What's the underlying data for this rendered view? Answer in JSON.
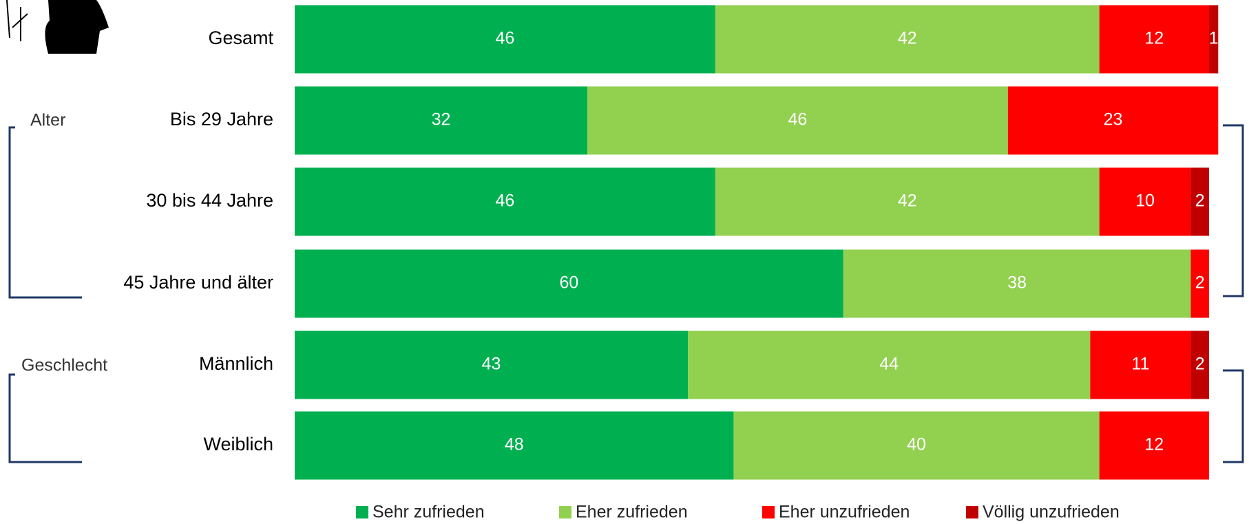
{
  "chart_data": {
    "type": "bar",
    "orientation": "horizontal",
    "stacked": true,
    "categories": [
      "Gesamt",
      "Bis 29 Jahre",
      "30 bis 44 Jahre",
      "45 Jahre und älter",
      "Männlich",
      "Weiblich"
    ],
    "series": [
      {
        "name": "Sehr zufrieden",
        "color": "#00b050",
        "values": [
          46,
          32,
          46,
          60,
          43,
          48
        ]
      },
      {
        "name": "Eher zufrieden",
        "color": "#92d050",
        "values": [
          42,
          46,
          42,
          38,
          44,
          40
        ]
      },
      {
        "name": "Eher unzufrieden",
        "color": "#ff0000",
        "values": [
          12,
          23,
          10,
          2,
          11,
          12
        ]
      },
      {
        "name": "Völlig unzufrieden",
        "color": "#c00000",
        "values": [
          1,
          null,
          2,
          null,
          2,
          null
        ]
      }
    ],
    "xlim": [
      0,
      100
    ],
    "groups": [
      "Alter",
      "Geschlecht"
    ]
  }
}
